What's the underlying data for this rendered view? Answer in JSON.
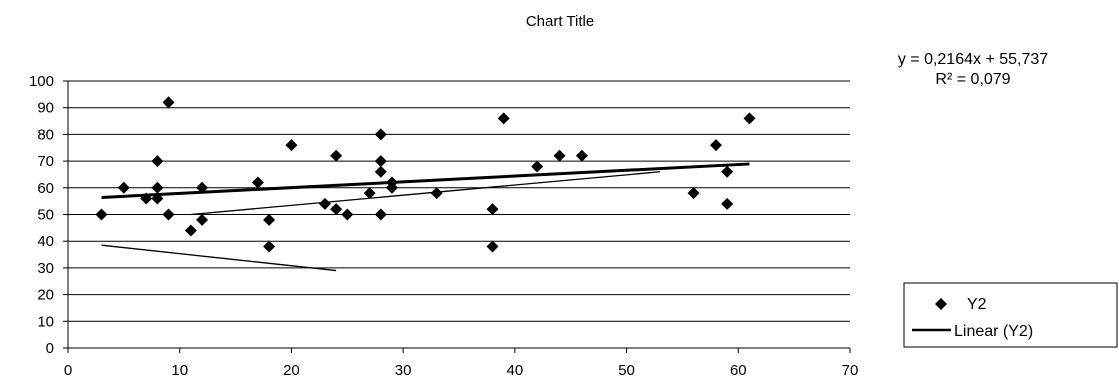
{
  "chart_data": {
    "type": "scatter",
    "title": "Chart Title",
    "xlabel": "",
    "ylabel": "",
    "xlim": [
      0,
      70
    ],
    "ylim": [
      0,
      100
    ],
    "x_ticks": [
      "0",
      "10",
      "20",
      "30",
      "40",
      "50",
      "60",
      "70"
    ],
    "y_ticks": [
      "0",
      "10",
      "20",
      "30",
      "40",
      "50",
      "60",
      "70",
      "80",
      "90",
      "100"
    ],
    "grid": "horizontal",
    "legend_position": "right",
    "series": [
      {
        "name": "Y2",
        "marker": "diamond",
        "color": "#000000",
        "points": [
          [
            3,
            50
          ],
          [
            5,
            60
          ],
          [
            7,
            56
          ],
          [
            8,
            70
          ],
          [
            8,
            60
          ],
          [
            8,
            56
          ],
          [
            9,
            92
          ],
          [
            9,
            50
          ],
          [
            11,
            44
          ],
          [
            12,
            60
          ],
          [
            12,
            48
          ],
          [
            17,
            62
          ],
          [
            18,
            48
          ],
          [
            18,
            38
          ],
          [
            20,
            76
          ],
          [
            23,
            54
          ],
          [
            24,
            72
          ],
          [
            24,
            52
          ],
          [
            25,
            50
          ],
          [
            27,
            58
          ],
          [
            28,
            80
          ],
          [
            28,
            70
          ],
          [
            28,
            66
          ],
          [
            28,
            50
          ],
          [
            29,
            62
          ],
          [
            29,
            60
          ],
          [
            33,
            58
          ],
          [
            38,
            52
          ],
          [
            38,
            38
          ],
          [
            39,
            86
          ],
          [
            42,
            68
          ],
          [
            44,
            72
          ],
          [
            46,
            72
          ],
          [
            56,
            58
          ],
          [
            58,
            76
          ],
          [
            59,
            66
          ],
          [
            59,
            54
          ],
          [
            61,
            86
          ]
        ]
      }
    ],
    "trendline": {
      "name": "Linear (Y2)",
      "slope": 0.2164,
      "intercept": 55.737,
      "x_range": [
        3,
        61
      ],
      "equation": "y = 0,2164x + 55,737",
      "r_squared": "R² = 0,079"
    },
    "extra_lines": [
      [
        [
          3,
          38.5
        ],
        [
          24,
          29
        ]
      ],
      [
        [
          11,
          50
        ],
        [
          53,
          66
        ]
      ]
    ]
  }
}
